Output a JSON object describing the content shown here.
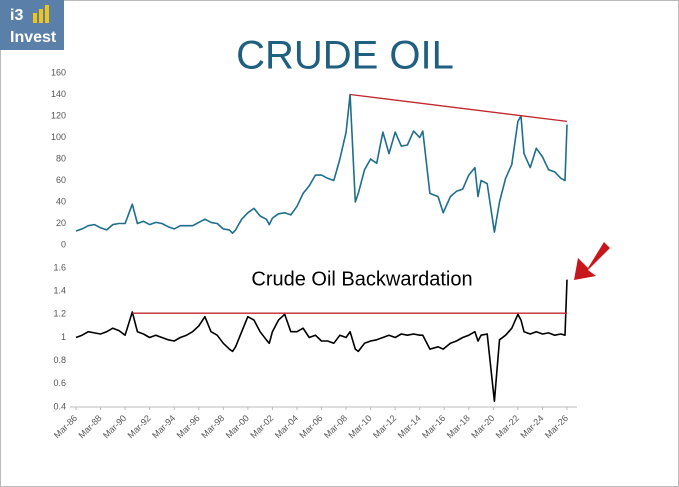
{
  "logo": {
    "mark": "i3",
    "name": "Invest"
  },
  "chart_data": [
    {
      "type": "line",
      "title": "CRUDE OIL",
      "x": [
        "Mar-86",
        "Sep-86",
        "Mar-87",
        "Sep-87",
        "Mar-88",
        "Sep-88",
        "Mar-89",
        "Sep-89",
        "Mar-90",
        "Oct-90",
        "Mar-91",
        "Sep-91",
        "Mar-92",
        "Sep-92",
        "Mar-93",
        "Sep-93",
        "Mar-94",
        "Sep-94",
        "Mar-95",
        "Sep-95",
        "Mar-96",
        "Sep-96",
        "Mar-97",
        "Sep-97",
        "Mar-98",
        "Sep-98",
        "Dec-98",
        "Mar-99",
        "Sep-99",
        "Mar-00",
        "Sep-00",
        "Mar-01",
        "Sep-01",
        "Dec-01",
        "Mar-02",
        "Sep-02",
        "Mar-03",
        "Sep-03",
        "Mar-04",
        "Sep-04",
        "Mar-05",
        "Sep-05",
        "Mar-06",
        "Sep-06",
        "Mar-07",
        "Sep-07",
        "Mar-08",
        "Jul-08",
        "Dec-08",
        "Mar-09",
        "Sep-09",
        "Mar-10",
        "Sep-10",
        "Mar-11",
        "Sep-11",
        "Mar-12",
        "Sep-12",
        "Mar-13",
        "Sep-13",
        "Mar-14",
        "Jun-14",
        "Jan-15",
        "Sep-15",
        "Feb-16",
        "Sep-16",
        "Mar-17",
        "Sep-17",
        "Mar-18",
        "Sep-18",
        "Dec-18",
        "Mar-19",
        "Sep-19",
        "Apr-20",
        "Sep-20",
        "Mar-21",
        "Sep-21",
        "Mar-22",
        "Jun-22",
        "Sep-22",
        "Mar-23",
        "Sep-23",
        "Mar-24",
        "Sep-24",
        "Mar-25",
        "Sep-25",
        "Jan-26",
        "Mar-26"
      ],
      "series": [
        {
          "name": "Crude Oil",
          "color": "#1f6e8c",
          "values": [
            13,
            15,
            18,
            19,
            16,
            14,
            19,
            20,
            20,
            38,
            20,
            22,
            19,
            21,
            20,
            17,
            15,
            18,
            18,
            18,
            21,
            24,
            21,
            20,
            15,
            14,
            11,
            14,
            24,
            30,
            34,
            27,
            24,
            19,
            25,
            29,
            30,
            28,
            36,
            48,
            55,
            65,
            65,
            62,
            60,
            80,
            105,
            140,
            40,
            48,
            70,
            80,
            76,
            105,
            85,
            105,
            92,
            93,
            106,
            100,
            106,
            48,
            45,
            30,
            45,
            50,
            52,
            65,
            72,
            45,
            60,
            57,
            12,
            40,
            62,
            75,
            115,
            120,
            85,
            72,
            90,
            82,
            70,
            68,
            62,
            60,
            112
          ]
        }
      ],
      "trendline": {
        "color": "#c0282d",
        "x": [
          "Jul-08",
          "Mar-26"
        ],
        "values": [
          140,
          115
        ]
      },
      "ylim": [
        0,
        160
      ],
      "yticks": [
        0,
        20,
        40,
        60,
        80,
        100,
        120,
        140,
        160
      ]
    },
    {
      "type": "line",
      "title": "Crude Oil Backwardation",
      "x": [
        "Mar-86",
        "Sep-86",
        "Mar-87",
        "Sep-87",
        "Mar-88",
        "Sep-88",
        "Mar-89",
        "Sep-89",
        "Mar-90",
        "Oct-90",
        "Mar-91",
        "Sep-91",
        "Mar-92",
        "Sep-92",
        "Mar-93",
        "Sep-93",
        "Mar-94",
        "Sep-94",
        "Mar-95",
        "Sep-95",
        "Mar-96",
        "Sep-96",
        "Mar-97",
        "Sep-97",
        "Mar-98",
        "Sep-98",
        "Dec-98",
        "Mar-99",
        "Sep-99",
        "Mar-00",
        "Sep-00",
        "Mar-01",
        "Sep-01",
        "Dec-01",
        "Mar-02",
        "Sep-02",
        "Mar-03",
        "Sep-03",
        "Mar-04",
        "Sep-04",
        "Mar-05",
        "Sep-05",
        "Mar-06",
        "Sep-06",
        "Mar-07",
        "Sep-07",
        "Mar-08",
        "Jul-08",
        "Dec-08",
        "Mar-09",
        "Sep-09",
        "Mar-10",
        "Sep-10",
        "Mar-11",
        "Sep-11",
        "Mar-12",
        "Sep-12",
        "Mar-13",
        "Sep-13",
        "Mar-14",
        "Jun-14",
        "Jan-15",
        "Sep-15",
        "Feb-16",
        "Sep-16",
        "Mar-17",
        "Sep-17",
        "Mar-18",
        "Sep-18",
        "Dec-18",
        "Mar-19",
        "Sep-19",
        "Apr-20",
        "Sep-20",
        "Mar-21",
        "Sep-21",
        "Mar-22",
        "Jun-22",
        "Sep-22",
        "Mar-23",
        "Sep-23",
        "Mar-24",
        "Sep-24",
        "Mar-25",
        "Sep-25",
        "Jan-26",
        "Mar-26"
      ],
      "series": [
        {
          "name": "Backwardation",
          "color": "#000000",
          "values": [
            1.0,
            1.02,
            1.05,
            1.04,
            1.03,
            1.05,
            1.08,
            1.06,
            1.02,
            1.22,
            1.05,
            1.03,
            1.0,
            1.02,
            1.0,
            0.98,
            0.97,
            1.0,
            1.02,
            1.05,
            1.1,
            1.18,
            1.05,
            1.02,
            0.95,
            0.9,
            0.88,
            0.92,
            1.05,
            1.18,
            1.15,
            1.05,
            0.98,
            0.95,
            1.05,
            1.15,
            1.2,
            1.05,
            1.05,
            1.08,
            1.0,
            1.02,
            0.97,
            0.97,
            0.95,
            1.02,
            1.0,
            1.05,
            0.9,
            0.88,
            0.95,
            0.97,
            0.98,
            1.0,
            1.02,
            1.0,
            1.03,
            1.02,
            1.03,
            1.02,
            1.02,
            0.9,
            0.92,
            0.9,
            0.95,
            0.97,
            1.0,
            1.02,
            1.05,
            0.97,
            1.02,
            1.03,
            0.45,
            0.98,
            1.02,
            1.08,
            1.2,
            1.15,
            1.05,
            1.03,
            1.05,
            1.03,
            1.04,
            1.02,
            1.03,
            1.02,
            1.5
          ]
        }
      ],
      "trendline": {
        "color": "#c0282d",
        "x": [
          "Oct-90",
          "Mar-26"
        ],
        "values": [
          1.21,
          1.21
        ]
      },
      "ylim": [
        0.4,
        1.6
      ],
      "yticks": [
        0.4,
        0.6,
        0.8,
        1,
        1.2,
        1.4,
        1.6
      ],
      "xticks": [
        "Mar-86",
        "Mar-88",
        "Mar-90",
        "Mar-92",
        "Mar-94",
        "Mar-96",
        "Mar-98",
        "Mar-00",
        "Mar-02",
        "Mar-04",
        "Mar-06",
        "Mar-08",
        "Mar-10",
        "Mar-12",
        "Mar-14",
        "Mar-16",
        "Mar-18",
        "Mar-20",
        "Mar-22",
        "Mar-24",
        "Mar-26"
      ]
    }
  ]
}
